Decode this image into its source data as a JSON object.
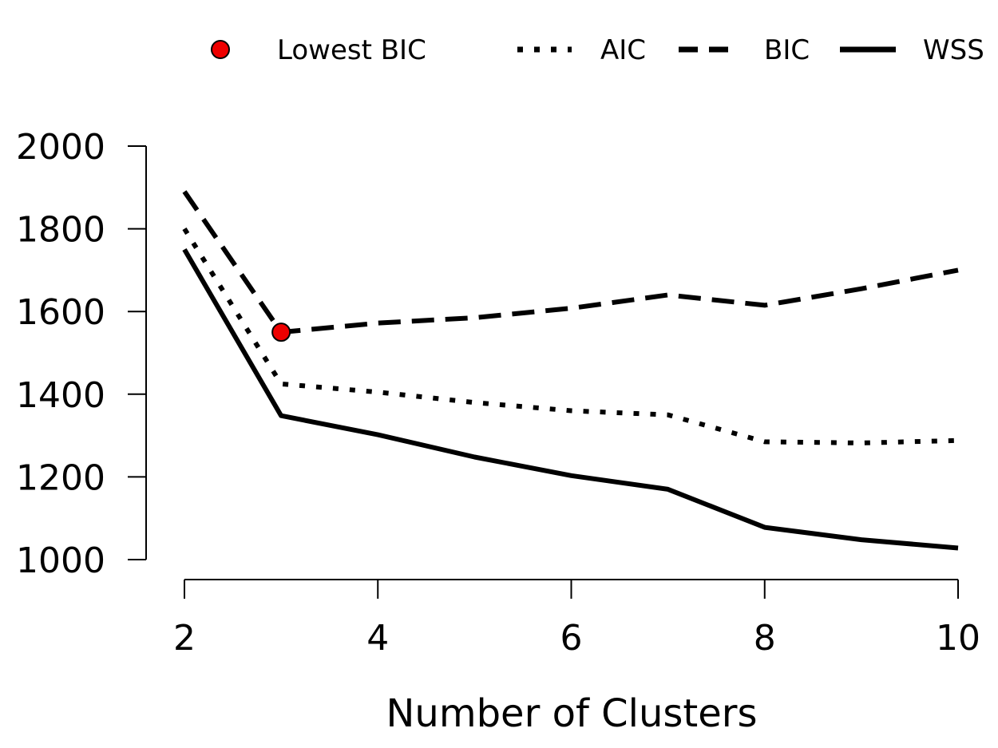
{
  "chart_data": {
    "type": "line",
    "title": "",
    "xlabel": "Number of Clusters",
    "ylabel": "",
    "x": [
      2,
      3,
      4,
      5,
      6,
      7,
      8,
      9,
      10
    ],
    "xlim": [
      2,
      10
    ],
    "ylim": [
      1000,
      2000
    ],
    "x_ticks": [
      "2",
      "4",
      "6",
      "8",
      "10"
    ],
    "y_ticks": [
      "1000",
      "1200",
      "1400",
      "1600",
      "1800",
      "2000"
    ],
    "grid": false,
    "legend_position": "top",
    "series": [
      {
        "name": "AIC",
        "style": "dotted",
        "color": "#000000",
        "values": [
          1800,
          1425,
          1405,
          1380,
          1360,
          1350,
          1285,
          1282,
          1288
        ]
      },
      {
        "name": "BIC",
        "style": "dashed",
        "color": "#000000",
        "values": [
          1890,
          1550,
          1572,
          1585,
          1608,
          1640,
          1615,
          1655,
          1700
        ]
      },
      {
        "name": "WSS",
        "style": "solid",
        "color": "#000000",
        "values": [
          1750,
          1348,
          1302,
          1248,
          1203,
          1170,
          1078,
          1048,
          1028
        ]
      }
    ],
    "highlight": {
      "name": "Lowest BIC",
      "x": 3,
      "y": 1550,
      "color": "#ee0000"
    }
  }
}
